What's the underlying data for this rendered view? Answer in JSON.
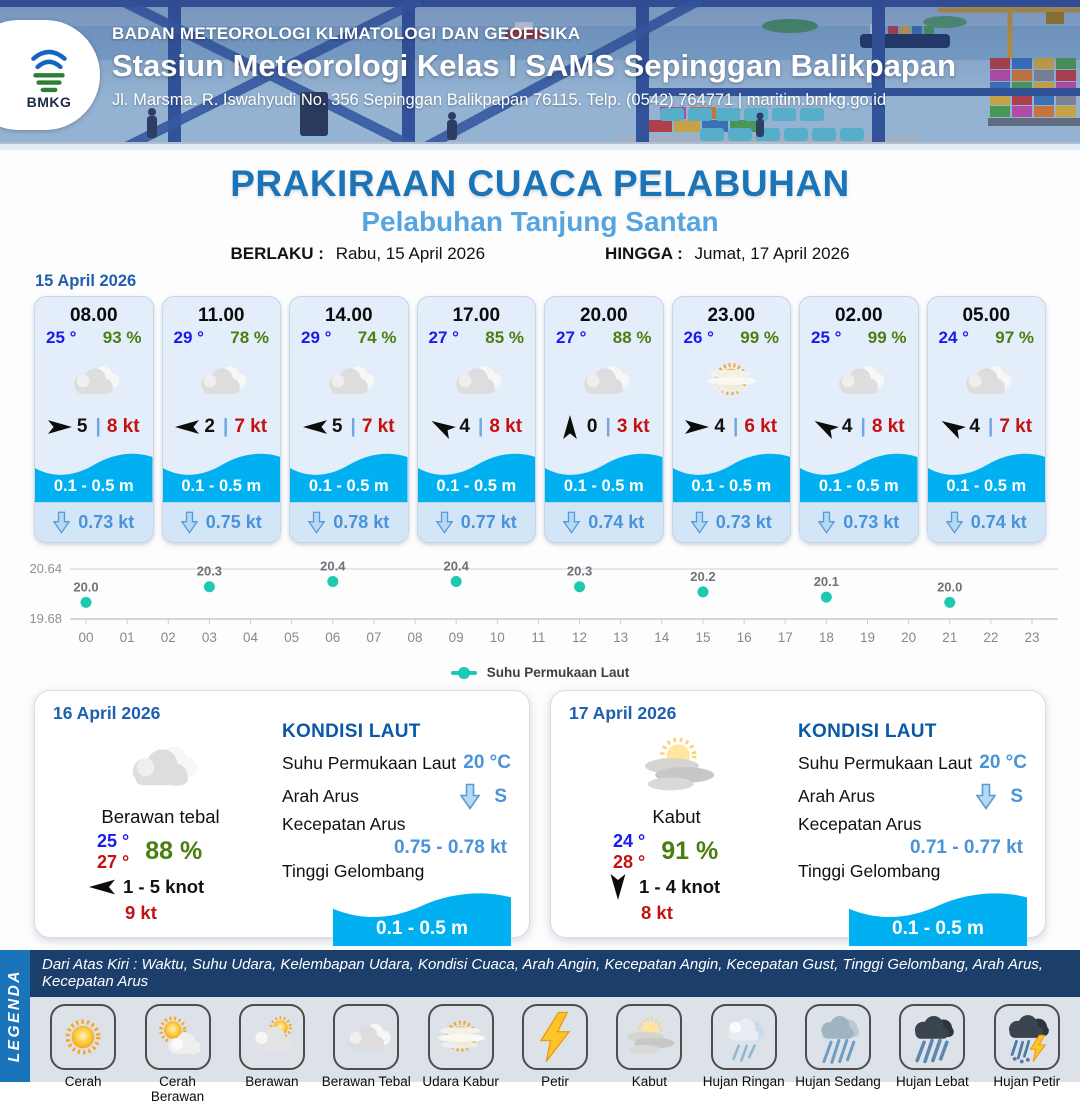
{
  "colors": {
    "title": "#1b74b8",
    "subtitle": "#56a5e0",
    "date": "#1e5fae",
    "temp": "#1a1aee",
    "hum": "#4a7f10",
    "gust": "#c41111",
    "wave": "#00b0f0",
    "current": "#4a93d9",
    "teal": "#1ec9b0"
  },
  "ui": {
    "pipe": "|"
  },
  "header": {
    "logo_text": "BMKG",
    "line1": "BADAN METEOROLOGI KLIMATOLOGI DAN GEOFISIKA",
    "line2": "Stasiun Meteorologi Kelas I SAMS Sepinggan Balikpapan",
    "line3": "Jl. Marsma. R. Iswahyudi No. 356 Sepinggan Balikpapan 76115. Telp. (0542) 764771 | maritim.bmkg.go.id"
  },
  "title": {
    "main": "PRAKIRAAN CUACA PELABUHAN",
    "subtitle": "Pelabuhan Tanjung Santan",
    "valid_from_label": "BERLAKU :",
    "valid_from": "Rabu, 15 April 2026",
    "valid_to_label": "HINGGA :",
    "valid_to": "Jumat, 17 April 2026"
  },
  "forecast_date": "15 April 2026",
  "hourly": [
    {
      "time": "08.00",
      "temp": "25 °",
      "humidity": "93 %",
      "icon": "berawan-tebal",
      "wind_dir_deg": 0,
      "wind_speed": "5",
      "gust": "8 kt",
      "wave": "0.1 - 0.5 m",
      "current": "0.73 kt"
    },
    {
      "time": "11.00",
      "temp": "29 °",
      "humidity": "78 %",
      "icon": "berawan-tebal",
      "wind_dir_deg": 180,
      "wind_speed": "2",
      "gust": "7 kt",
      "wave": "0.1 - 0.5 m",
      "current": "0.75 kt"
    },
    {
      "time": "14.00",
      "temp": "29 °",
      "humidity": "74 %",
      "icon": "berawan-tebal",
      "wind_dir_deg": 180,
      "wind_speed": "5",
      "gust": "7 kt",
      "wave": "0.1 - 0.5 m",
      "current": "0.78 kt"
    },
    {
      "time": "17.00",
      "temp": "27 °",
      "humidity": "85 %",
      "icon": "berawan-tebal",
      "wind_dir_deg": 210,
      "wind_speed": "4",
      "gust": "8 kt",
      "wave": "0.1 - 0.5 m",
      "current": "0.77 kt"
    },
    {
      "time": "20.00",
      "temp": "27 °",
      "humidity": "88 %",
      "icon": "berawan-tebal",
      "wind_dir_deg": 270,
      "wind_speed": "0",
      "gust": "3 kt",
      "wave": "0.1 - 0.5 m",
      "current": "0.74 kt"
    },
    {
      "time": "23.00",
      "temp": "26 °",
      "humidity": "99 %",
      "icon": "udara-kabur",
      "wind_dir_deg": 0,
      "wind_speed": "4",
      "gust": "6 kt",
      "wave": "0.1 - 0.5 m",
      "current": "0.73 kt"
    },
    {
      "time": "02.00",
      "temp": "25 °",
      "humidity": "99 %",
      "icon": "berawan-tebal",
      "wind_dir_deg": 210,
      "wind_speed": "4",
      "gust": "8 kt",
      "wave": "0.1 - 0.5 m",
      "current": "0.73 kt"
    },
    {
      "time": "05.00",
      "temp": "24 °",
      "humidity": "97 %",
      "icon": "berawan-tebal",
      "wind_dir_deg": 210,
      "wind_speed": "4",
      "gust": "7 kt",
      "wave": "0.1 - 0.5 m",
      "current": "0.74 kt"
    }
  ],
  "chart_data": {
    "type": "line",
    "title": "Suhu Permukaan Laut",
    "xlabel": "",
    "ylabel": "",
    "ylim": [
      19.68,
      20.64
    ],
    "yticks": [
      "19.68",
      "20.64"
    ],
    "grid": "horizontal-top-bottom",
    "legend_position": "bottom-center",
    "color": "#1ec9b0",
    "x_labels": [
      "00",
      "01",
      "02",
      "03",
      "04",
      "05",
      "06",
      "07",
      "08",
      "09",
      "10",
      "11",
      "12",
      "13",
      "14",
      "15",
      "16",
      "17",
      "18",
      "19",
      "20",
      "21",
      "22",
      "23"
    ],
    "series": [
      {
        "name": "Suhu Permukaan Laut",
        "points": [
          {
            "h": 0,
            "v": 20.0,
            "label": "20.0"
          },
          {
            "h": 3,
            "v": 20.3,
            "label": "20.3"
          },
          {
            "h": 6,
            "v": 20.4,
            "label": "20.4"
          },
          {
            "h": 9,
            "v": 20.4,
            "label": "20.4"
          },
          {
            "h": 12,
            "v": 20.3,
            "label": "20.3"
          },
          {
            "h": 15,
            "v": 20.2,
            "label": "20.2"
          },
          {
            "h": 18,
            "v": 20.1,
            "label": "20.1"
          },
          {
            "h": 21,
            "v": 20.0,
            "label": "20.0"
          }
        ]
      }
    ]
  },
  "day16": {
    "date": "16 April 2026",
    "icon": "berawan-tebal",
    "condition": "Berawan tebal",
    "temp_min": "25 °",
    "temp_max": "27 °",
    "humidity": "88 %",
    "wind_dir_deg": 180,
    "wind_range": "1 - 5 knot",
    "gust": "9 kt",
    "sea": {
      "heading": "KONDISI LAUT",
      "sst_label": "Suhu Permukaan Laut",
      "sst": "20 °C",
      "dir_label": "Arah Arus",
      "dir": "S",
      "speed_label": "Kecepatan Arus",
      "speed": "0.75 - 0.78 kt",
      "wave_label": "Tinggi Gelombang",
      "wave": "0.1 - 0.5 m"
    }
  },
  "day17": {
    "date": "17 April 2026",
    "icon": "kabut",
    "condition": "Kabut",
    "temp_min": "24 °",
    "temp_max": "28 °",
    "humidity": "91 %",
    "wind_dir_deg": 90,
    "wind_range": "1 - 4 knot",
    "gust": "8 kt",
    "sea": {
      "heading": "KONDISI LAUT",
      "sst_label": "Suhu Permukaan Laut",
      "sst": "20 °C",
      "dir_label": "Arah Arus",
      "dir": "S",
      "speed_label": "Kecepatan Arus",
      "speed": "0.71 - 0.77 kt",
      "wave_label": "Tinggi Gelombang",
      "wave": "0.1 - 0.5 m"
    }
  },
  "legend": {
    "sidebar": "LEGENDA",
    "caption": "Dari Atas Kiri : Waktu, Suhu Udara, Kelembapan Udara, Kondisi Cuaca, Arah Angin, Kecepatan Angin, Kecepatan Gust, Tinggi Gelombang, Arah Arus, Kecepatan Arus",
    "items": [
      {
        "label": "Cerah",
        "icon": "cerah"
      },
      {
        "label": "Cerah Berawan",
        "icon": "cerah-berawan"
      },
      {
        "label": "Berawan",
        "icon": "berawan"
      },
      {
        "label": "Berawan Tebal",
        "icon": "berawan-tebal"
      },
      {
        "label": "Udara Kabur",
        "icon": "udara-kabur"
      },
      {
        "label": "Petir",
        "icon": "petir"
      },
      {
        "label": "Kabut",
        "icon": "kabut"
      },
      {
        "label": "Hujan Ringan",
        "icon": "hujan-ringan"
      },
      {
        "label": "Hujan Sedang",
        "icon": "hujan-sedang"
      },
      {
        "label": "Hujan Lebat",
        "icon": "hujan-lebat"
      },
      {
        "label": "Hujan Petir",
        "icon": "hujan-petir"
      }
    ]
  }
}
